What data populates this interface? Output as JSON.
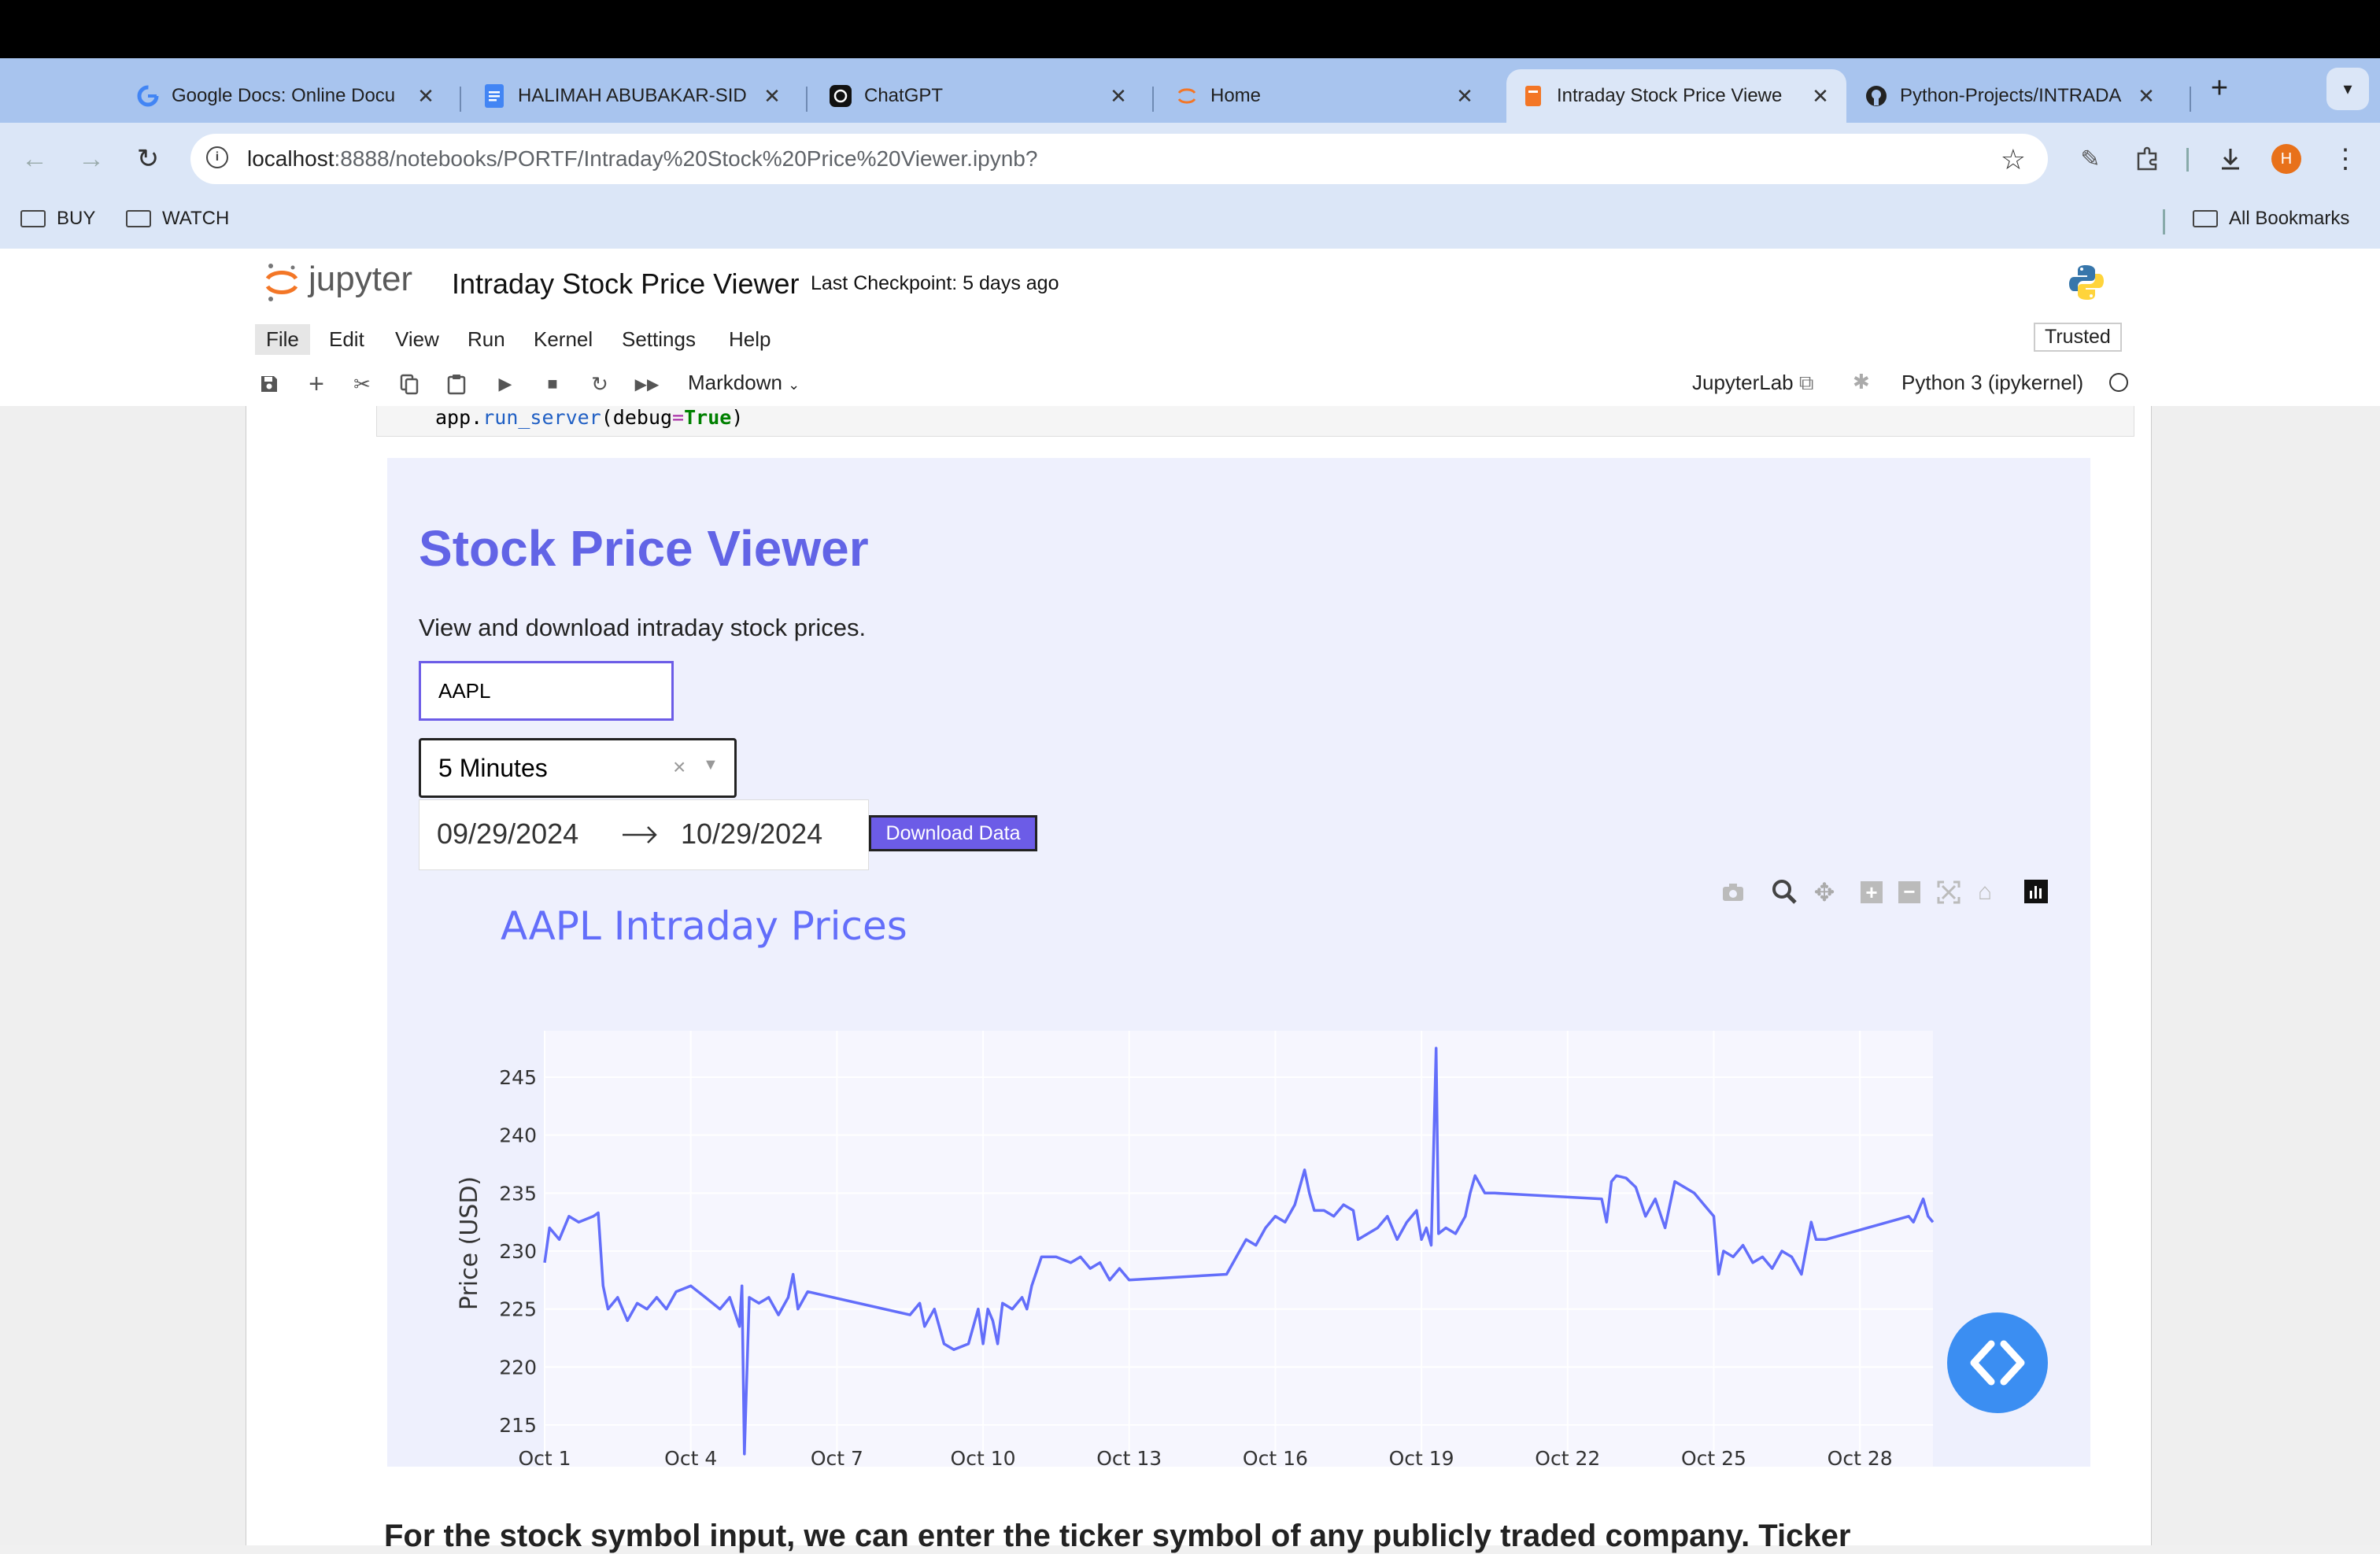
{
  "browser": {
    "tabs": [
      {
        "label": "Google Docs: Online Docu",
        "icon": "google-icon"
      },
      {
        "label": "HALIMAH ABUBAKAR-SID",
        "icon": "docs-icon"
      },
      {
        "label": "ChatGPT",
        "icon": "chatgpt-icon"
      },
      {
        "label": "Home",
        "icon": "jupyter-icon"
      },
      {
        "label": "Intraday Stock Price Viewe",
        "icon": "notebook-icon"
      },
      {
        "label": "Python-Projects/INTRADA",
        "icon": "github-icon"
      }
    ],
    "url_host": "localhost",
    "url_path": ":8888/notebooks/PORTF/Intraday%20Stock%20Price%20Viewer.ipynb?",
    "avatar_letter": "H",
    "bookmarks": [
      "BUY",
      "WATCH"
    ],
    "all_bookmarks": "All Bookmarks"
  },
  "jupyter": {
    "logo_text": "jupyter",
    "notebook_title": "Intraday Stock Price Viewer",
    "checkpoint": "Last Checkpoint: 5 days ago",
    "menu": [
      "File",
      "Edit",
      "View",
      "Run",
      "Kernel",
      "Settings",
      "Help"
    ],
    "trusted": "Trusted",
    "cell_type": "Markdown",
    "jupyterlab_link": "JupyterLab",
    "kernel": "Python 3 (ipykernel)",
    "code_line": {
      "a": "app.",
      "b": "run_server",
      "c": "(debug",
      "d": "=",
      "e": "True",
      "f": ")"
    }
  },
  "dash": {
    "title": "Stock Price Viewer",
    "subtitle": "View and download intraday stock prices.",
    "ticker_value": "AAPL",
    "interval_value": "5 Minutes",
    "start_date": "09/29/2024",
    "end_date": "10/29/2024",
    "download_label": "Download Data"
  },
  "chart_data": {
    "type": "line",
    "title": "AAPL Intraday Prices",
    "xlabel": "",
    "ylabel": "Price (USD)",
    "ylim": [
      211,
      249
    ],
    "yticks": [
      215,
      220,
      225,
      230,
      235,
      240,
      245
    ],
    "xticks": [
      "Oct 1",
      "Oct 4",
      "Oct 7",
      "Oct 10",
      "Oct 13",
      "Oct 16",
      "Oct 19",
      "Oct 22",
      "Oct 25",
      "Oct 28"
    ],
    "xlim_days": [
      0,
      28.5
    ],
    "line_color": "#636efa",
    "grid": true,
    "series": [
      {
        "values_approx": [
          [
            0,
            229
          ],
          [
            0.1,
            232
          ],
          [
            0.3,
            231
          ],
          [
            0.5,
            233
          ],
          [
            0.7,
            232.5
          ],
          [
            1.0,
            233
          ],
          [
            1.1,
            233.3
          ],
          [
            1.2,
            227
          ],
          [
            1.3,
            225
          ],
          [
            1.5,
            226
          ],
          [
            1.7,
            224
          ],
          [
            1.9,
            225.5
          ],
          [
            2.1,
            225
          ],
          [
            2.3,
            226
          ],
          [
            2.5,
            225
          ],
          [
            2.7,
            226.5
          ],
          [
            3.0,
            227
          ],
          [
            3.3,
            226
          ],
          [
            3.6,
            225
          ],
          [
            3.8,
            226
          ],
          [
            4.0,
            223.5
          ],
          [
            4.05,
            227
          ],
          [
            4.1,
            212.5
          ],
          [
            4.2,
            226
          ],
          [
            4.4,
            225.5
          ],
          [
            4.6,
            226
          ],
          [
            4.8,
            224.5
          ],
          [
            5.0,
            226
          ],
          [
            5.1,
            228
          ],
          [
            5.2,
            225
          ],
          [
            5.4,
            226.5
          ],
          [
            7.5,
            224.5
          ],
          [
            7.7,
            225.5
          ],
          [
            7.8,
            223.5
          ],
          [
            8.0,
            225
          ],
          [
            8.2,
            222
          ],
          [
            8.4,
            221.5
          ],
          [
            8.7,
            222
          ],
          [
            8.9,
            225
          ],
          [
            9.0,
            222
          ],
          [
            9.1,
            225
          ],
          [
            9.2,
            224
          ],
          [
            9.3,
            222
          ],
          [
            9.4,
            225.5
          ],
          [
            9.6,
            225
          ],
          [
            9.8,
            226
          ],
          [
            9.9,
            225
          ],
          [
            10.0,
            227
          ],
          [
            10.2,
            229.5
          ],
          [
            10.5,
            229.5
          ],
          [
            10.8,
            229
          ],
          [
            11.0,
            229.5
          ],
          [
            11.2,
            228.5
          ],
          [
            11.4,
            229
          ],
          [
            11.6,
            227.5
          ],
          [
            11.8,
            228.5
          ],
          [
            12.0,
            227.5
          ],
          [
            14.0,
            228
          ],
          [
            14.2,
            229.5
          ],
          [
            14.4,
            231
          ],
          [
            14.6,
            230.5
          ],
          [
            14.8,
            232
          ],
          [
            15.0,
            233
          ],
          [
            15.2,
            232.5
          ],
          [
            15.4,
            234
          ],
          [
            15.6,
            237
          ],
          [
            15.7,
            235
          ],
          [
            15.8,
            233.5
          ],
          [
            16.0,
            233.5
          ],
          [
            16.2,
            233
          ],
          [
            16.4,
            234
          ],
          [
            16.6,
            233.5
          ],
          [
            16.7,
            231
          ],
          [
            16.9,
            231.5
          ],
          [
            17.1,
            232
          ],
          [
            17.3,
            233
          ],
          [
            17.5,
            231
          ],
          [
            17.7,
            232.5
          ],
          [
            17.9,
            233.5
          ],
          [
            18.0,
            231
          ],
          [
            18.1,
            232
          ],
          [
            18.2,
            230.5
          ],
          [
            18.3,
            247.5
          ],
          [
            18.35,
            231.5
          ],
          [
            18.5,
            232
          ],
          [
            18.7,
            231.5
          ],
          [
            18.9,
            233
          ],
          [
            19.0,
            235
          ],
          [
            19.1,
            236.5
          ],
          [
            19.3,
            235
          ],
          [
            19.5,
            235
          ],
          [
            21.7,
            234.5
          ],
          [
            21.8,
            232.5
          ],
          [
            21.9,
            236
          ],
          [
            22.0,
            236.5
          ],
          [
            22.2,
            236.3
          ],
          [
            22.4,
            235.5
          ],
          [
            22.6,
            233
          ],
          [
            22.8,
            234.5
          ],
          [
            23.0,
            232
          ],
          [
            23.2,
            236
          ],
          [
            23.4,
            235.5
          ],
          [
            23.6,
            235
          ],
          [
            23.8,
            234
          ],
          [
            24.0,
            233
          ],
          [
            24.1,
            228
          ],
          [
            24.2,
            230
          ],
          [
            24.4,
            229.5
          ],
          [
            24.6,
            230.5
          ],
          [
            24.8,
            229
          ],
          [
            25.0,
            229.5
          ],
          [
            25.2,
            228.5
          ],
          [
            25.4,
            230
          ],
          [
            25.6,
            229.5
          ],
          [
            25.8,
            228
          ],
          [
            26.0,
            232.5
          ],
          [
            26.1,
            231
          ],
          [
            26.3,
            231
          ],
          [
            28.0,
            233
          ],
          [
            28.1,
            232.5
          ],
          [
            28.2,
            233.5
          ],
          [
            28.3,
            234.5
          ],
          [
            28.4,
            233
          ],
          [
            28.5,
            232.5
          ]
        ]
      }
    ]
  },
  "fab_icon": "code-brackets-icon",
  "bottom_text": "For the stock symbol input, we can enter the ticker symbol of any publicly traded company. Ticker"
}
